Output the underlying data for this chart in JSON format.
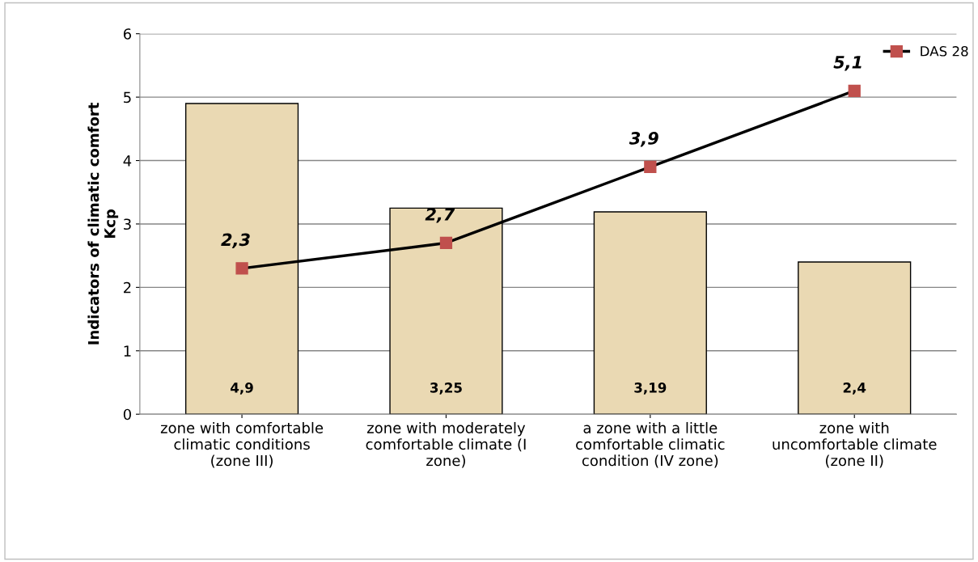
{
  "chart_data": {
    "type": "bar",
    "ylabel": "Indicators of climatic comfort\nKcp",
    "categories": [
      "zone with comfortable\nclimatic conditions\n(zone III)",
      "zone with moderately\ncomfortable climate (I\nzone)",
      "a zone with a little\ncomfortable climatic\ncondition (IV zone)",
      "zone with\nuncomfortable climate\n(zone II)"
    ],
    "series": [
      {
        "color": "#ead9b3",
        "values": [
          4.9,
          3.25,
          3.19,
          2.4
        ],
        "value_labels": [
          "4,9",
          "3,25",
          "3,19",
          "2,4"
        ]
      },
      {
        "type": "line",
        "name": "DAS 28",
        "color": "#000000",
        "colors": [
          "#c0504d",
          "#c0504d",
          "#c0504d",
          "#c0504d"
        ],
        "marker": "square",
        "values": [
          2.3,
          2.7,
          3.9,
          5.1
        ],
        "value_labels": [
          "2,3",
          "2,7",
          "3,9",
          "5,1"
        ]
      }
    ],
    "ylim": [
      0,
      6
    ],
    "yticks": [
      0,
      1,
      2,
      3,
      4,
      5,
      6
    ],
    "grid": "y",
    "legend": "top right"
  }
}
